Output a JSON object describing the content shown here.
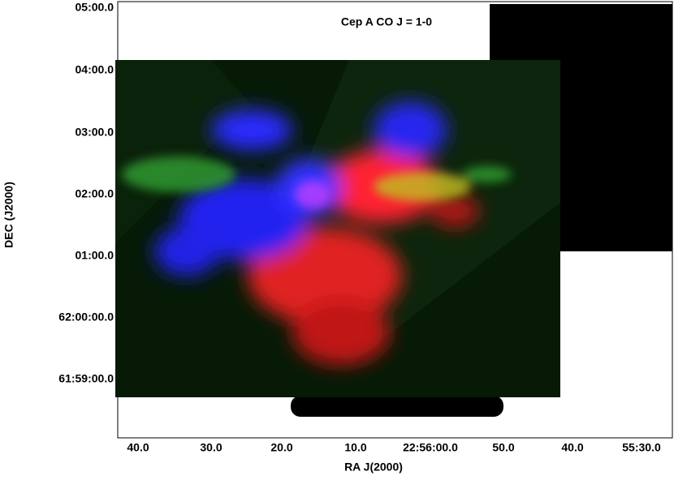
{
  "figure": {
    "title": "Cep A CO J = 1-0",
    "x_axis": {
      "label": "RA  J(2000)",
      "ticks": [
        "40.0",
        "30.0",
        "20.0",
        "10.0",
        "22:56:00.0",
        "50.0",
        "40.0",
        "55:30.0"
      ]
    },
    "y_axis": {
      "label": "DEC  (J2000)",
      "ticks": [
        "05:00.0",
        "04:00.0",
        "03:00.0",
        "02:00.0",
        "01:00.0",
        "62:00:00.0",
        "61:59:00.0"
      ]
    }
  }
}
